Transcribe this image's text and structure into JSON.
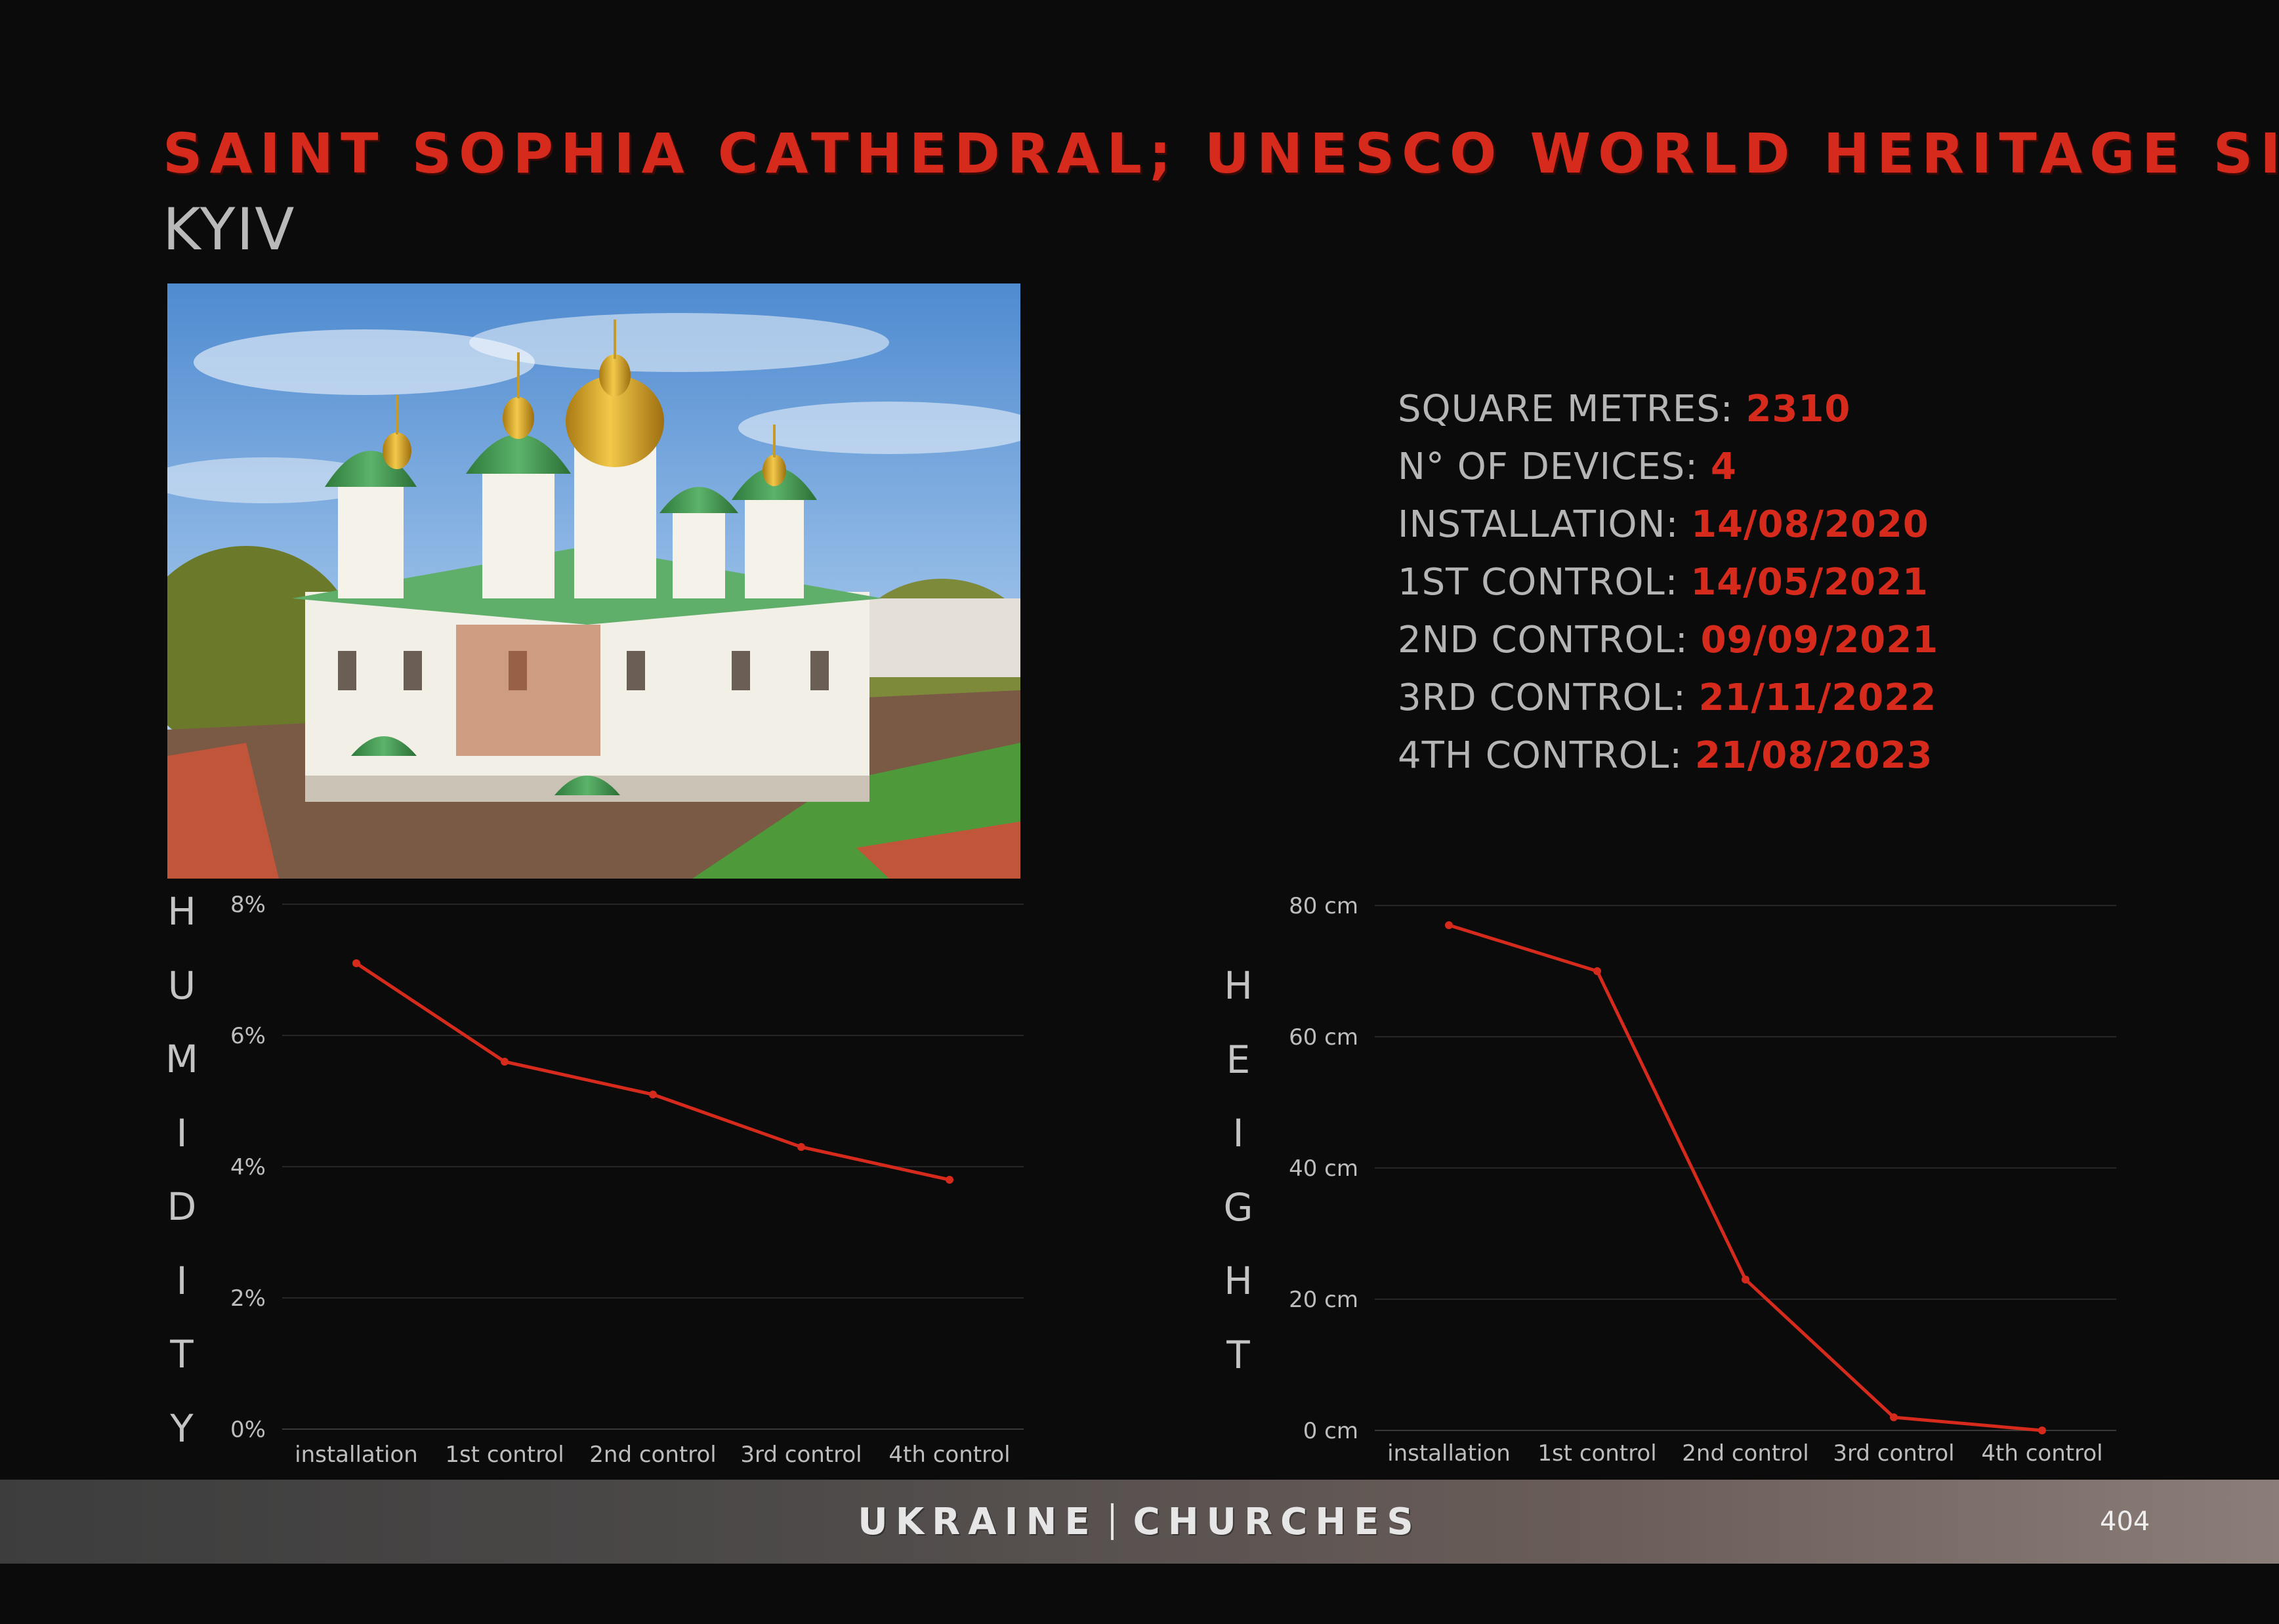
{
  "header": {
    "title": "SAINT SOPHIA CATHEDRAL; UNESCO WORLD HERITAGE SITE",
    "city": "KYIV"
  },
  "facts": [
    {
      "label": "SQUARE METRES: ",
      "value": "2310"
    },
    {
      "label": "N° OF DEVICES: ",
      "value": "4"
    },
    {
      "label": "INSTALLATION: ",
      "value": "14/08/2020"
    },
    {
      "label": "1ST CONTROL: ",
      "value": "14/05/2021"
    },
    {
      "label": "2ND CONTROL: ",
      "value": "09/09/2021"
    },
    {
      "label": "3RD CONTROL: ",
      "value": "21/11/2022"
    },
    {
      "label": "4TH CONTROL: ",
      "value": "21/08/2023"
    }
  ],
  "colors": {
    "accent": "#d52a1c",
    "line": "#d52a1c"
  },
  "chart_data": [
    {
      "type": "line",
      "vertical_label": "HUMIDITY",
      "categories": [
        "installation",
        "1st control",
        "2nd control",
        "3rd control",
        "4th control"
      ],
      "values": [
        7.1,
        5.6,
        5.1,
        4.3,
        3.8
      ],
      "yticks": [
        "0%",
        "2%",
        "4%",
        "6%",
        "8%"
      ],
      "ylim": [
        0,
        8
      ],
      "grid": true
    },
    {
      "type": "line",
      "vertical_label": "HEIGHT",
      "categories": [
        "installation",
        "1st control",
        "2nd control",
        "3rd control",
        "4th control"
      ],
      "values": [
        77,
        70,
        23,
        2,
        0
      ],
      "yticks": [
        "0 cm",
        "20 cm",
        "40 cm",
        "60 cm",
        "80 cm"
      ],
      "ylim": [
        0,
        80
      ],
      "grid": true
    }
  ],
  "footer": {
    "left": "UKRAINE",
    "right": "CHURCHES",
    "page": "404"
  }
}
